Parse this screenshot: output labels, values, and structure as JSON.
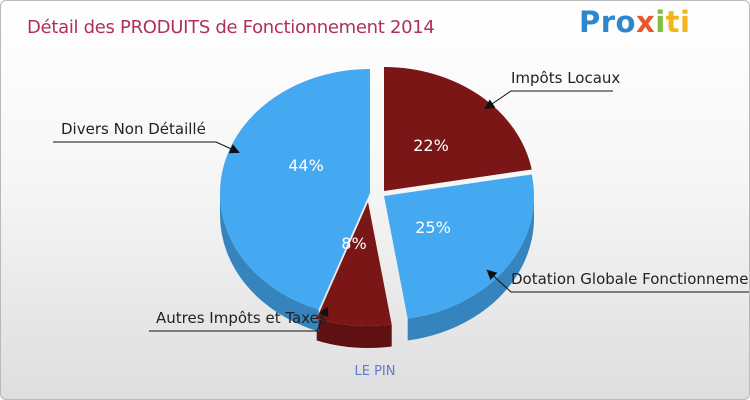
{
  "header": {
    "title": "Détail des PRODUITS de Fonctionnement 2014",
    "logo": [
      "Pro",
      "x",
      "i",
      "ti"
    ]
  },
  "footer": {
    "caption": "LE PIN"
  },
  "colors": {
    "blue": "#45a9f2",
    "dark_red": "#7a1616",
    "title": "#b0305a"
  },
  "chart_data": {
    "type": "pie",
    "title": "Détail des PRODUITS de Fonctionnement 2014",
    "caption": "LE PIN",
    "categories": [
      "Impôts Locaux",
      "Dotation Globale Fonctionnement",
      "Autres Impôts et Taxes",
      "Divers Non Détaillé"
    ],
    "values": [
      22,
      25,
      8,
      44
    ],
    "labels": [
      "22%",
      "25%",
      "8%",
      "44%"
    ],
    "slice_colors": [
      "#7a1616",
      "#45a9f2",
      "#7a1616",
      "#45a9f2"
    ],
    "legend_placement": "callouts"
  }
}
